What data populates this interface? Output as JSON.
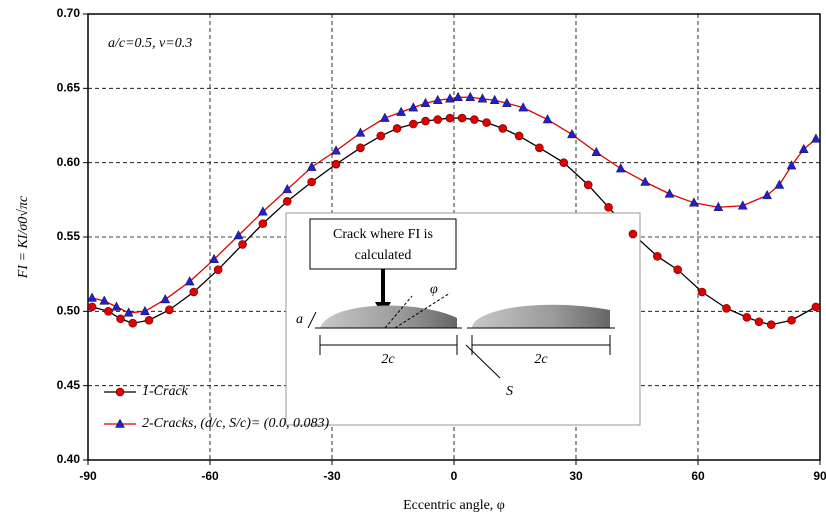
{
  "chart_data": {
    "type": "line",
    "x_label": "Eccentric angle, φ",
    "y_label": "FI = KI/σ0√πc",
    "xlim": [
      -90,
      90
    ],
    "xticks": [
      -90,
      -60,
      -30,
      0,
      30,
      60,
      90
    ],
    "ylim": [
      0.4,
      0.7
    ],
    "yticks": [
      {
        "value": 0.4,
        "label": "0.40"
      },
      0.45,
      {
        "value": 0.5,
        "label": "0.50"
      },
      0.55,
      {
        "value": 0.6,
        "label": "0.60"
      },
      0.65,
      {
        "value": 0.7,
        "label": "0.70"
      }
    ],
    "grid": true,
    "legend": "lower-left",
    "series": [
      {
        "name": "1-Crack",
        "color": "#000000",
        "marker_color": "#e00000",
        "marker": "circle",
        "x": [
          -89,
          -85,
          -82,
          -79,
          -75,
          -70,
          -64,
          -58,
          -52,
          -47,
          -41,
          -35,
          -29,
          -23,
          -18,
          -14,
          -10,
          -7,
          -4,
          -1,
          2,
          5,
          8,
          12,
          16,
          21,
          27,
          33,
          38,
          44,
          50,
          55,
          61,
          67,
          72,
          75,
          78,
          83,
          89
        ],
        "values": [
          0.503,
          0.5,
          0.495,
          0.492,
          0.494,
          0.501,
          0.513,
          0.528,
          0.545,
          0.559,
          0.574,
          0.587,
          0.599,
          0.61,
          0.618,
          0.623,
          0.626,
          0.628,
          0.629,
          0.63,
          0.63,
          0.629,
          0.627,
          0.623,
          0.618,
          0.61,
          0.6,
          0.585,
          0.57,
          0.552,
          0.537,
          0.528,
          0.513,
          0.502,
          0.496,
          0.493,
          0.491,
          0.494,
          0.503
        ]
      },
      {
        "name": "2-Cracks,  (d/c, S/c)= (0.0,  0.083)",
        "color": "#e00000",
        "marker_color": "#2020d0",
        "marker": "triangle",
        "x": [
          -89,
          -86,
          -83,
          -80,
          -76,
          -71,
          -65,
          -59,
          -53,
          -47,
          -41,
          -35,
          -29,
          -23,
          -17,
          -13,
          -10,
          -7,
          -4,
          -1,
          1,
          4,
          7,
          10,
          13,
          17,
          23,
          29,
          35,
          41,
          47,
          53,
          59,
          65,
          71,
          77,
          80,
          83,
          86,
          89
        ],
        "values": [
          0.509,
          0.507,
          0.503,
          0.499,
          0.5,
          0.508,
          0.52,
          0.535,
          0.551,
          0.567,
          0.582,
          0.597,
          0.608,
          0.62,
          0.63,
          0.634,
          0.637,
          0.64,
          0.642,
          0.643,
          0.644,
          0.644,
          0.643,
          0.642,
          0.64,
          0.637,
          0.629,
          0.619,
          0.607,
          0.596,
          0.587,
          0.579,
          0.573,
          0.57,
          0.571,
          0.578,
          0.585,
          0.598,
          0.609,
          0.616
        ]
      }
    ],
    "annotations": {
      "params": "a/c=0.5, v=0.3",
      "crack_note": [
        "Crack where FI is",
        "calculated"
      ],
      "a": "a",
      "phi": "φ",
      "two_c": [
        "2c",
        "2c"
      ],
      "s": "S"
    }
  }
}
